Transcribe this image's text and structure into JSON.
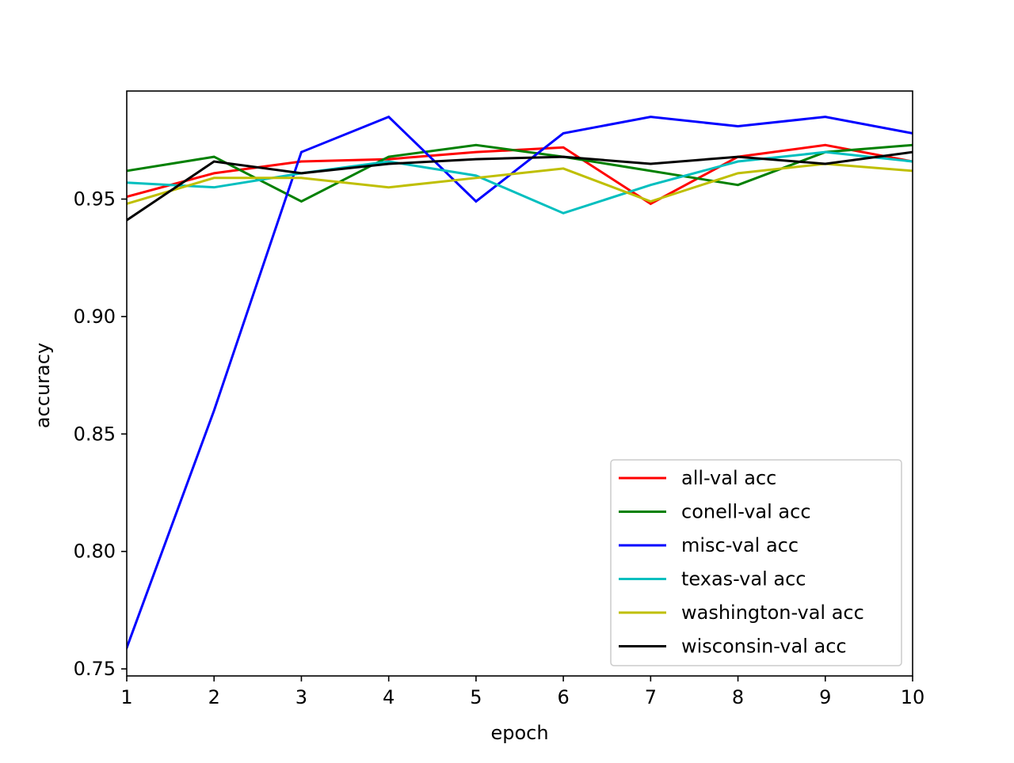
{
  "chart_data": {
    "type": "line",
    "title": "",
    "xlabel": "epoch",
    "ylabel": "accuracy",
    "xlim": [
      1,
      10
    ],
    "ylim": [
      0.747,
      0.996
    ],
    "xticks": [
      1,
      2,
      3,
      4,
      5,
      6,
      7,
      8,
      9,
      10
    ],
    "xtick_labels": [
      "1",
      "2",
      "3",
      "4",
      "5",
      "6",
      "7",
      "8",
      "9",
      "10"
    ],
    "yticks": [
      0.75,
      0.8,
      0.85,
      0.9,
      0.95
    ],
    "ytick_labels": [
      "0.75",
      "0.80",
      "0.85",
      "0.90",
      "0.95"
    ],
    "grid": false,
    "legend_position": "lower-right",
    "x": [
      1,
      2,
      3,
      4,
      5,
      6,
      7,
      8,
      9,
      10
    ],
    "series": [
      {
        "name": "all-val acc",
        "color": "#ff0000",
        "values": [
          0.951,
          0.961,
          0.966,
          0.967,
          0.97,
          0.972,
          0.948,
          0.968,
          0.973,
          0.966
        ]
      },
      {
        "name": "conell-val acc",
        "color": "#008000",
        "values": [
          0.962,
          0.968,
          0.949,
          0.968,
          0.973,
          0.968,
          0.962,
          0.956,
          0.97,
          0.973
        ]
      },
      {
        "name": "misc-val acc",
        "color": "#0000ff",
        "values": [
          0.759,
          0.86,
          0.97,
          0.985,
          0.949,
          0.978,
          0.985,
          0.981,
          0.985,
          0.978
        ]
      },
      {
        "name": "texas-val acc",
        "color": "#00bfbf",
        "values": [
          0.957,
          0.955,
          0.961,
          0.966,
          0.96,
          0.944,
          0.956,
          0.966,
          0.97,
          0.966
        ]
      },
      {
        "name": "washington-val acc",
        "color": "#bfbf00",
        "values": [
          0.948,
          0.959,
          0.959,
          0.955,
          0.959,
          0.963,
          0.949,
          0.961,
          0.965,
          0.962
        ]
      },
      {
        "name": "wisconsin-val acc",
        "color": "#000000",
        "values": [
          0.941,
          0.966,
          0.961,
          0.965,
          0.967,
          0.968,
          0.965,
          0.968,
          0.965,
          0.97
        ]
      }
    ]
  }
}
